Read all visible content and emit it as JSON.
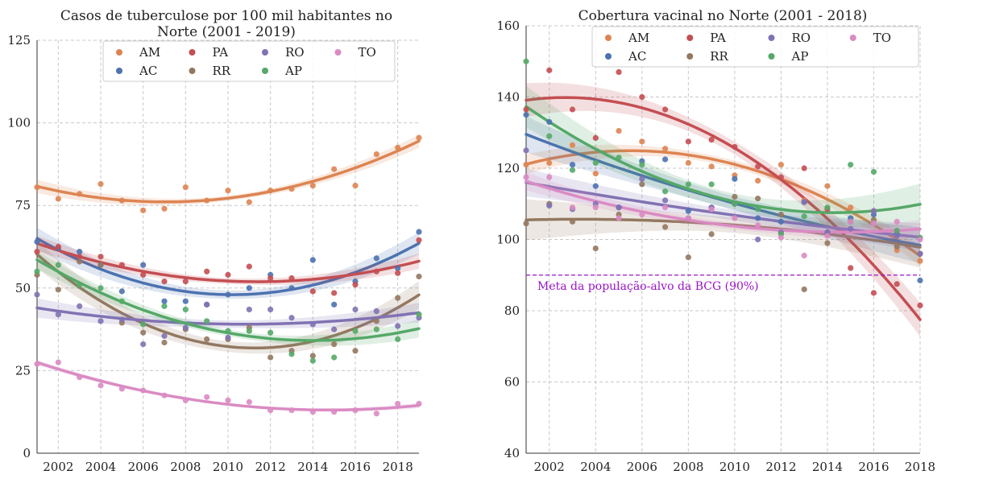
{
  "chart_data": [
    {
      "type": "scatter",
      "title": "Casos de tuberculose por 100 mil habitantes no\nNorte (2001 - 2019)",
      "xlim": [
        2001,
        2019
      ],
      "ylim": [
        0,
        125
      ],
      "xticks": [
        2002,
        2004,
        2006,
        2008,
        2010,
        2012,
        2014,
        2016,
        2018
      ],
      "yticks": [
        0,
        25,
        50,
        75,
        100,
        125
      ],
      "grid": true,
      "legend_position": "top",
      "x": [
        2001,
        2002,
        2003,
        2004,
        2005,
        2006,
        2007,
        2008,
        2009,
        2010,
        2011,
        2012,
        2013,
        2014,
        2015,
        2016,
        2017,
        2018,
        2019
      ],
      "series": [
        {
          "name": "AM",
          "color": "#dd8452",
          "values": [
            80.5,
            77,
            78.5,
            81.5,
            76.5,
            73.5,
            74,
            80.5,
            76.5,
            79.5,
            76,
            79.5,
            80,
            81,
            86,
            81,
            90.5,
            92.5,
            95.5
          ]
        },
        {
          "name": "AC",
          "color": "#4c72b0",
          "values": [
            64,
            62,
            61,
            57,
            49,
            57,
            46,
            46,
            45,
            48,
            50,
            54,
            50,
            58.5,
            45,
            52,
            59,
            56,
            67
          ]
        },
        {
          "name": "PA",
          "color": "#c44e52",
          "values": [
            61,
            62.5,
            59.5,
            59.5,
            57,
            54,
            52,
            52,
            55,
            54,
            56.5,
            53,
            53,
            49,
            48.5,
            51,
            55,
            54.5,
            64.5
          ]
        },
        {
          "name": "RR",
          "color": "#937860",
          "values": [
            54,
            49.5,
            58,
            57,
            39.5,
            36.5,
            33.5,
            37.5,
            34.5,
            34.5,
            38,
            29,
            31,
            29.5,
            33,
            31,
            40,
            47,
            53.5
          ]
        },
        {
          "name": "RO",
          "color": "#8172b3",
          "values": [
            48,
            42,
            44.5,
            40,
            40.5,
            33,
            35.5,
            38,
            45,
            35,
            43.5,
            43.5,
            41,
            39,
            37.5,
            43.5,
            43,
            38.5,
            41
          ]
        },
        {
          "name": "AP",
          "color": "#55a868",
          "values": [
            55,
            57,
            51,
            50,
            46,
            39,
            44.5,
            43.5,
            40,
            37,
            37,
            36.5,
            30,
            28,
            29,
            37,
            37.5,
            34.5,
            42
          ]
        },
        {
          "name": "TO",
          "color": "#da8bc3",
          "values": [
            27,
            27.5,
            23,
            20.5,
            19.5,
            19,
            17.5,
            16,
            17,
            16,
            15.5,
            13,
            13,
            12.5,
            12.5,
            13,
            12,
            15,
            15
          ]
        }
      ],
      "legend_order": [
        "AM",
        "PA",
        "RO",
        "TO",
        "AC",
        "RR",
        "AP"
      ]
    },
    {
      "type": "scatter",
      "title": "Cobertura vacinal no Norte (2001 - 2018)",
      "xlim": [
        2001,
        2018
      ],
      "ylim": [
        40,
        160
      ],
      "xticks": [
        2002,
        2004,
        2006,
        2008,
        2010,
        2012,
        2014,
        2016,
        2018
      ],
      "yticks": [
        40,
        60,
        80,
        100,
        120,
        140,
        160
      ],
      "grid": true,
      "legend_position": "top",
      "x": [
        2001,
        2002,
        2003,
        2004,
        2005,
        2006,
        2007,
        2008,
        2009,
        2010,
        2011,
        2012,
        2013,
        2014,
        2015,
        2016,
        2017,
        2018
      ],
      "series": [
        {
          "name": "AM",
          "color": "#dd8452",
          "values": [
            121,
            121.5,
            126.5,
            118.5,
            130.5,
            127.5,
            125.5,
            121.5,
            120.5,
            118,
            116.5,
            121,
            111,
            115,
            109,
            108,
            97,
            94
          ]
        },
        {
          "name": "AC",
          "color": "#4c72b0",
          "values": [
            135,
            133,
            121,
            115,
            109,
            122,
            122.5,
            108,
            109,
            117,
            106,
            105,
            110.5,
            102,
            106,
            107,
            101.5,
            88.5
          ]
        },
        {
          "name": "PA",
          "color": "#c44e52",
          "values": [
            136.5,
            147.5,
            136.5,
            128.5,
            147,
            140,
            136.5,
            127.5,
            128,
            126,
            120.5,
            117.5,
            120,
            108.5,
            92,
            85,
            87.5,
            81.5
          ]
        },
        {
          "name": "RR",
          "color": "#937860",
          "values": [
            104.5,
            110,
            105,
            97.5,
            107,
            115.5,
            103.5,
            95,
            101.5,
            112,
            111.5,
            107,
            86,
            99,
            105,
            105.5,
            98,
            96
          ]
        },
        {
          "name": "RO",
          "color": "#8172b3",
          "values": [
            125,
            109.5,
            108.5,
            110,
            109,
            117,
            111,
            106,
            109,
            110,
            100,
            102,
            110.5,
            102,
            103,
            108,
            101,
            96
          ]
        },
        {
          "name": "AP",
          "color": "#55a868",
          "values": [
            150,
            129,
            119.5,
            121.5,
            123,
            121,
            113.5,
            115.5,
            115.5,
            110,
            108.5,
            101.5,
            106.5,
            109,
            121,
            119,
            102.5,
            100.5
          ]
        },
        {
          "name": "TO",
          "color": "#da8bc3",
          "values": [
            117.5,
            117.5,
            109,
            109,
            106,
            107,
            109,
            106,
            108.5,
            106,
            104,
            100.5,
            95.5,
            101,
            105,
            104.5,
            105,
            100
          ]
        }
      ],
      "legend_order": [
        "AM",
        "PA",
        "RO",
        "TO",
        "AC",
        "RR",
        "AP"
      ],
      "hline": {
        "y": 90,
        "label": "Meta da população-alvo da BCG (90%)",
        "color": "#9b12c9"
      }
    }
  ]
}
